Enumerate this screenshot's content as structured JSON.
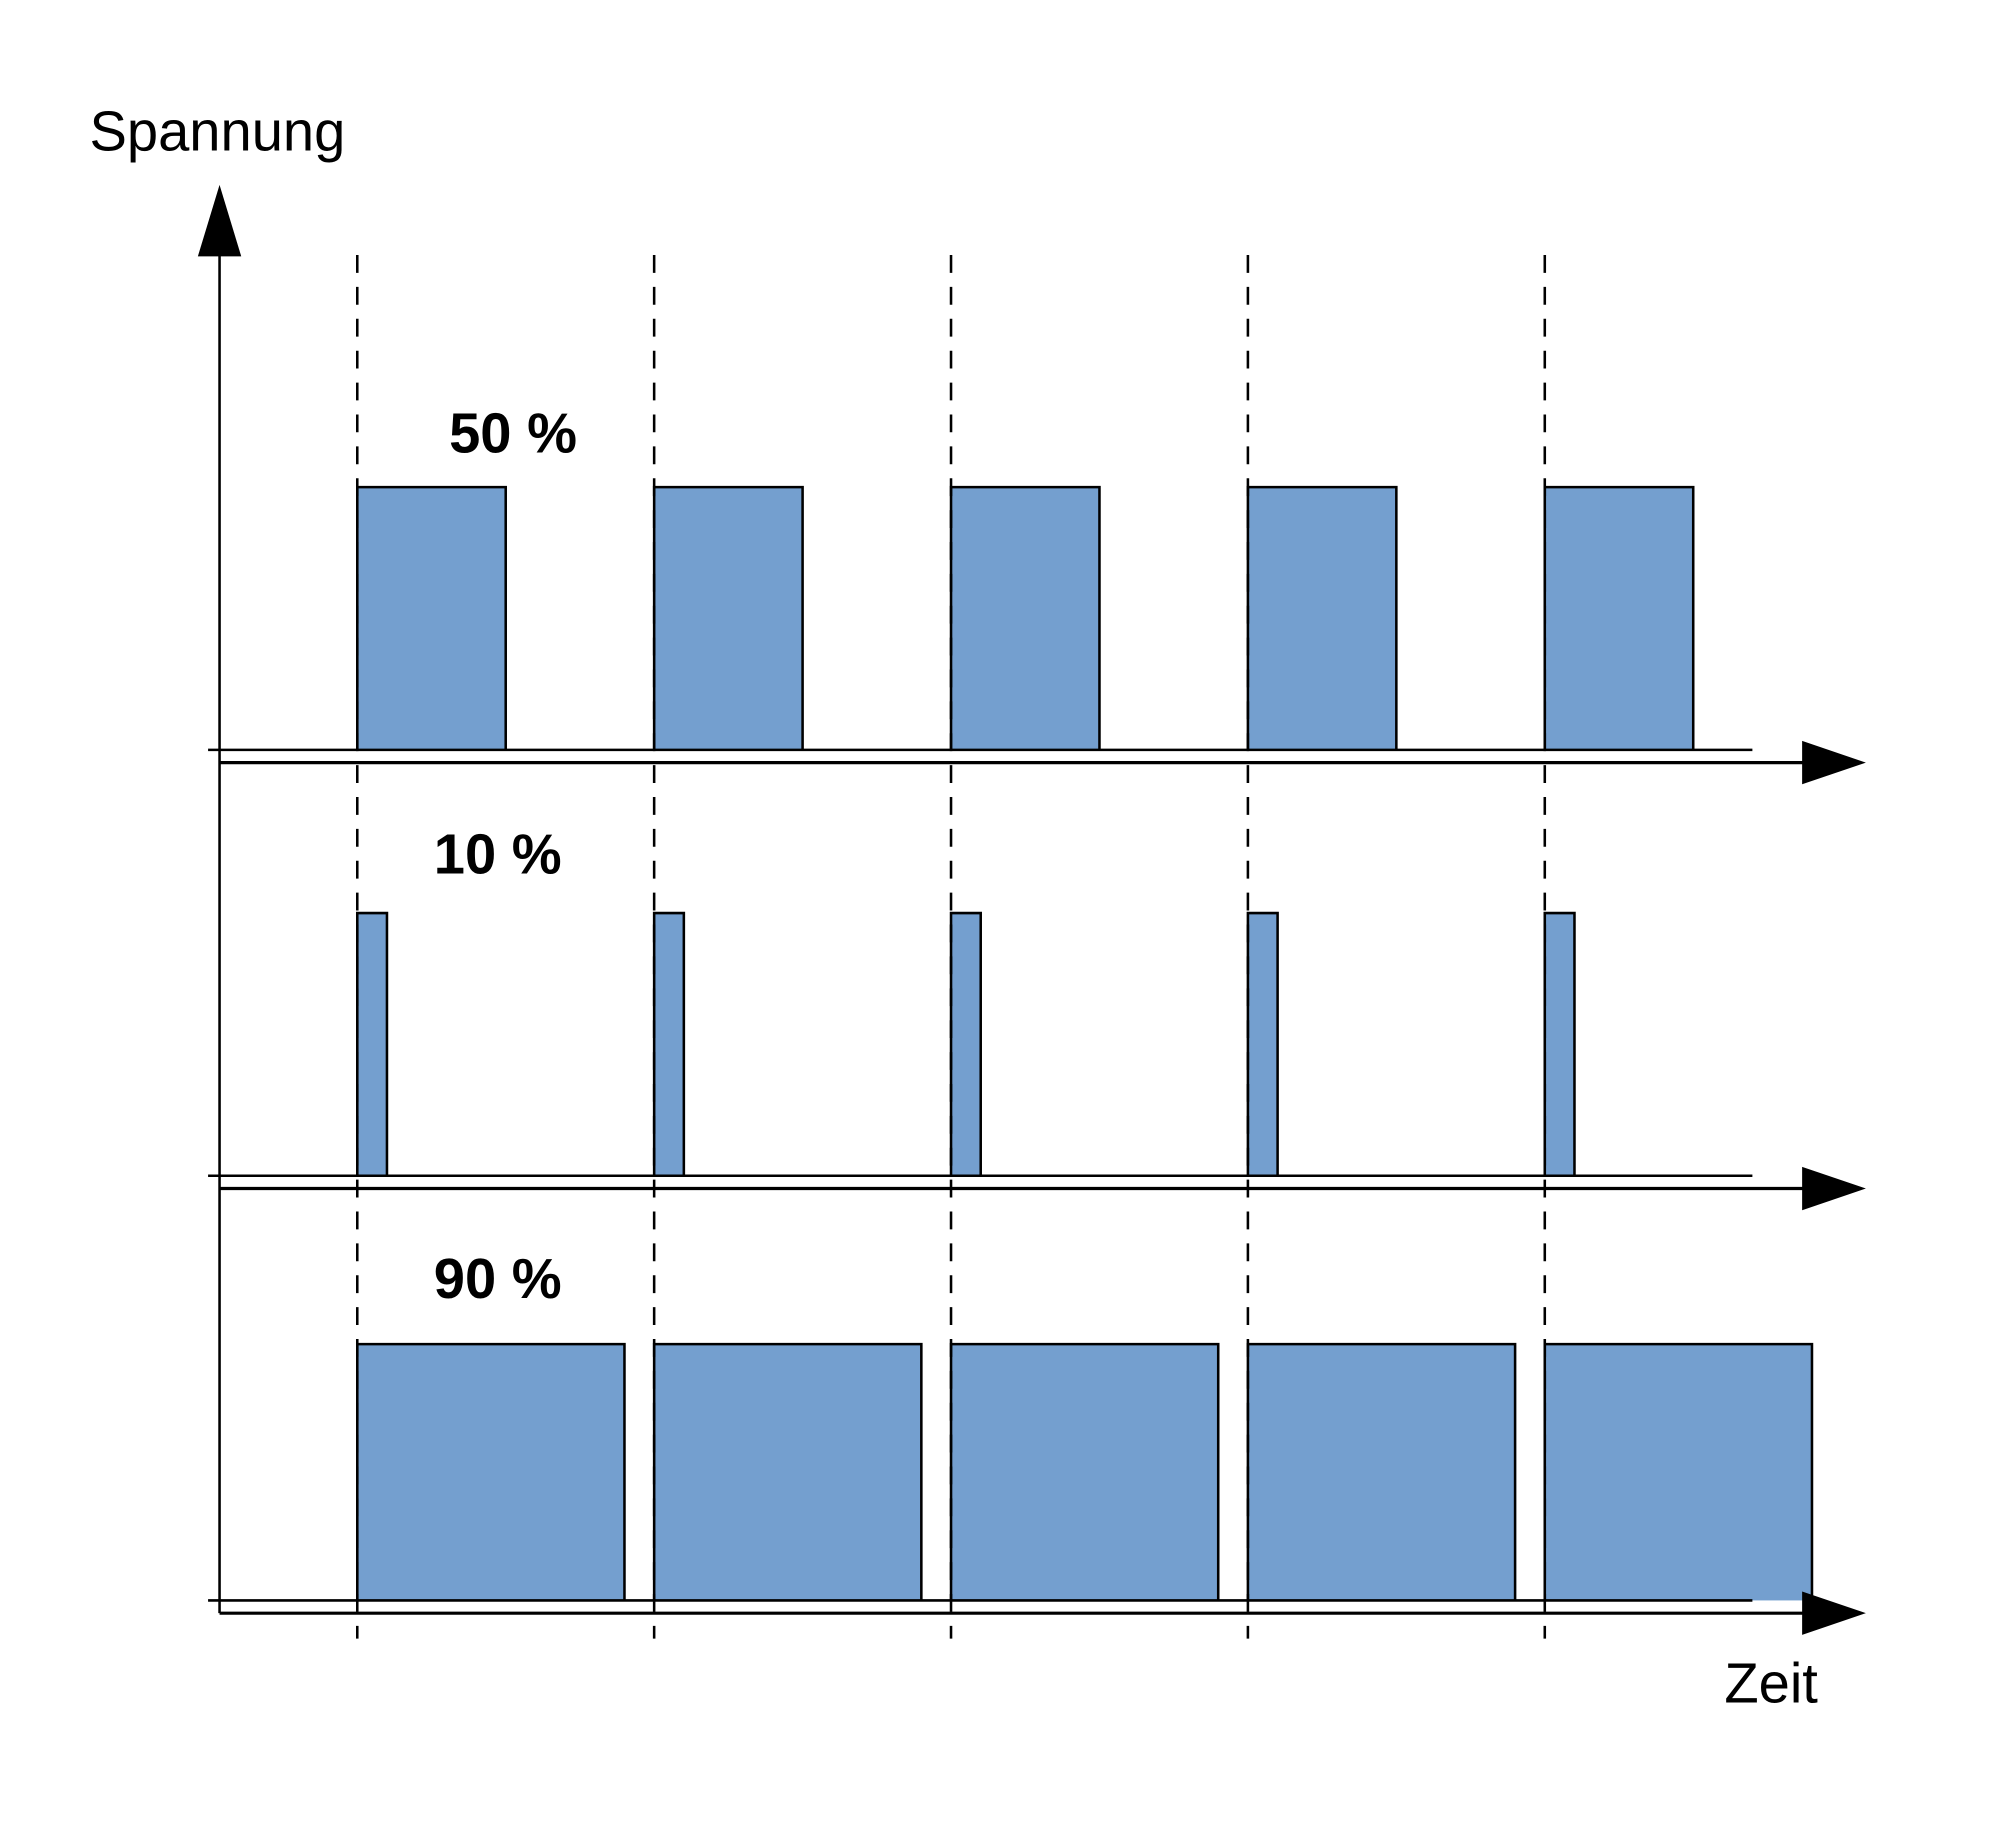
{
  "diagram": {
    "y_axis_label": "Spannung",
    "x_axis_label": "Zeit",
    "periods": 5,
    "pulse_color": "#749fcf",
    "signals": [
      {
        "label": "50 %",
        "duty_cycle": 0.5
      },
      {
        "label": "10 %",
        "duty_cycle": 0.1
      },
      {
        "label": "90 %",
        "duty_cycle": 0.9
      }
    ]
  }
}
